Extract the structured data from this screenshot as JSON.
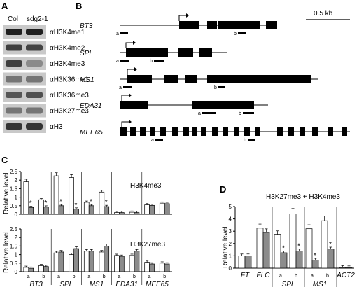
{
  "panel_a": {
    "letter": "A",
    "col_labels": [
      "Col",
      "sdg2-1"
    ],
    "antibodies": [
      "αH3K4me1",
      "αH3K4me2",
      "αH3K4me3",
      "αH3K36me1",
      "αH3K36me3",
      "αH3K27me3",
      "αH3"
    ],
    "band_intensity": [
      [
        0.95,
        0.95
      ],
      [
        0.8,
        0.78
      ],
      [
        0.8,
        0.45
      ],
      [
        0.55,
        0.55
      ],
      [
        0.7,
        0.72
      ],
      [
        0.55,
        0.55
      ],
      [
        0.85,
        0.85
      ]
    ]
  },
  "panel_b": {
    "letter": "B",
    "scale_label": "0.5 kb",
    "genes": [
      {
        "name": "BT3",
        "ampl": [
          "a",
          "b"
        ]
      },
      {
        "name": "SPL",
        "ampl": [
          "a",
          "b"
        ]
      },
      {
        "name": "MS1",
        "ampl": [
          "a",
          "b"
        ]
      },
      {
        "name": "EDA31",
        "ampl": [
          "a",
          "b"
        ]
      },
      {
        "name": "MEE65",
        "ampl": [
          "a",
          "b"
        ]
      }
    ]
  },
  "panel_c": {
    "letter": "C",
    "ylabel": "Relative level",
    "chart_data": [
      {
        "type": "bar",
        "title": "H3K4me3",
        "ylabel": "Relative level",
        "ylim": [
          0,
          2.5
        ],
        "yticks": [
          "0",
          "0.5",
          "1",
          "1.5",
          "2",
          "2.5"
        ],
        "series_colors": [
          "#ffffff",
          "#8c8c8c"
        ],
        "categories": [
          "BT3 a",
          "BT3 b",
          "SPL a",
          "SPL b",
          "MS1 a",
          "MS1 b",
          "EDA31 a",
          "EDA31 b",
          "MEE65 a",
          "MEE65 b"
        ],
        "series": [
          {
            "values": [
              1.9,
              0.85,
              2.25,
              2.15,
              0.7,
              1.3,
              0.1,
              0.12,
              0.55,
              0.65
            ]
          },
          {
            "values": [
              0.4,
              0.42,
              0.5,
              0.3,
              0.5,
              0.45,
              0.1,
              0.1,
              0.52,
              0.62
            ]
          }
        ],
        "asterisks": [
          true,
          true,
          true,
          true,
          true,
          true,
          false,
          false,
          false,
          false
        ],
        "gene_labels": [
          "BT3",
          "SPL",
          "MS1",
          "EDA31",
          "MEE65"
        ]
      },
      {
        "type": "bar",
        "title": "H3K27me3",
        "ylabel": "Relative level",
        "ylim": [
          0,
          2.5
        ],
        "yticks": [
          "0",
          "0.5",
          "1",
          "1.5",
          "2",
          "2.5"
        ],
        "series_colors": [
          "#ffffff",
          "#8c8c8c"
        ],
        "categories": [
          "BT3 a",
          "BT3 b",
          "SPL a",
          "SPL b",
          "MS1 a",
          "MS1 b",
          "EDA31 a",
          "EDA31 b",
          "MEE65 a",
          "MEE65 b"
        ],
        "series": [
          {
            "values": [
              0.25,
              0.35,
              1.1,
              1.0,
              1.2,
              1.15,
              0.95,
              0.95,
              0.55,
              0.5
            ]
          },
          {
            "values": [
              0.2,
              0.3,
              1.15,
              1.35,
              1.2,
              1.5,
              0.9,
              1.2,
              0.45,
              0.45
            ]
          }
        ],
        "asterisks": [
          false,
          false,
          false,
          false,
          false,
          false,
          false,
          false,
          false,
          false
        ],
        "gene_labels": [
          "BT3",
          "SPL",
          "MS1",
          "EDA31",
          "MEE65"
        ],
        "ab_labels": [
          "a",
          "b"
        ]
      }
    ]
  },
  "panel_d": {
    "letter": "D",
    "title": "H3K27me3 + H3K4me3",
    "chart_data": {
      "type": "bar",
      "ylabel": "Relative level",
      "ylim": [
        0,
        5
      ],
      "yticks": [
        "0",
        "1",
        "2",
        "3",
        "4",
        "5"
      ],
      "series_colors": [
        "#ffffff",
        "#8c8c8c"
      ],
      "categories": [
        "FT",
        "FLC",
        "SPL a",
        "SPL b",
        "MS1 a",
        "MS1 b",
        "ACT2"
      ],
      "series": [
        {
          "values": [
            1.0,
            3.25,
            2.75,
            4.4,
            3.2,
            3.85,
            0.05
          ]
        },
        {
          "values": [
            1.0,
            2.9,
            1.25,
            1.4,
            0.65,
            1.55,
            0.03
          ]
        }
      ],
      "asterisks": [
        false,
        false,
        true,
        true,
        true,
        true,
        false
      ],
      "x_labels": [
        "FT",
        "FLC",
        "a",
        "b",
        "a",
        "b",
        "ACT2"
      ],
      "group_labels": [
        "SPL",
        "MS1"
      ]
    }
  }
}
